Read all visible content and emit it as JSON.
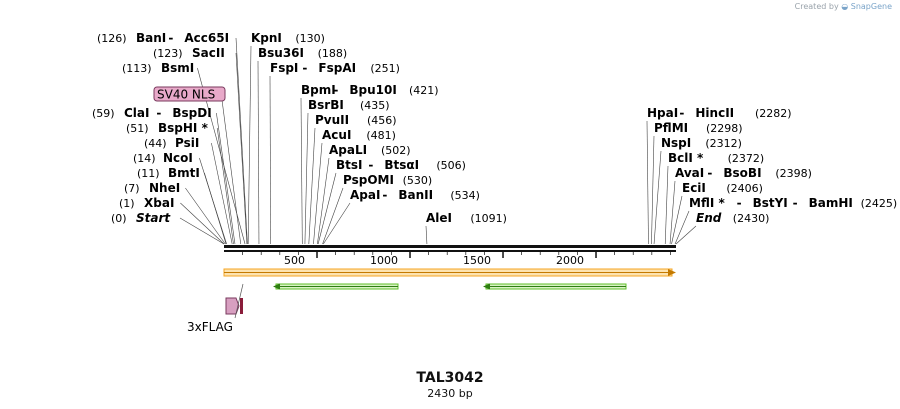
{
  "credit": {
    "prefix": "Created by",
    "brand": "SnapGene"
  },
  "plasmid": {
    "name": "TAL3042",
    "length_label": "2430 bp",
    "length": 2430
  },
  "axis": {
    "ticks": [
      500,
      1000,
      1500,
      2000
    ]
  },
  "sites_left": [
    {
      "pos": "(126)",
      "names": [
        "BanI",
        "Acc65I"
      ],
      "at": 126
    },
    {
      "pos": "(123)",
      "names": [
        "SacII"
      ],
      "at": 123
    },
    {
      "pos": "(113)",
      "names": [
        "BsmI"
      ],
      "at": 113
    },
    {
      "pos": "",
      "names": [],
      "at": 90,
      "feature": "SV40 NLS"
    },
    {
      "pos": "(59)",
      "names": [
        "ClaI",
        "BspDI"
      ],
      "at": 59
    },
    {
      "pos": "(51)",
      "names": [
        "BspHI *"
      ],
      "at": 51
    },
    {
      "pos": "(44)",
      "names": [
        "PsiI"
      ],
      "at": 44
    },
    {
      "pos": "(14)",
      "names": [
        "NcoI"
      ],
      "at": 14
    },
    {
      "pos": "(11)",
      "names": [
        "BmtI"
      ],
      "at": 11
    },
    {
      "pos": "(7)",
      "names": [
        "NheI"
      ],
      "at": 7
    },
    {
      "pos": "(1)",
      "names": [
        "XbaI"
      ],
      "at": 1
    },
    {
      "pos": "(0)",
      "names": [
        "Start"
      ],
      "at": 0,
      "italic": true
    }
  ],
  "sites_mid": [
    {
      "pos": "(130)",
      "names": [
        "KpnI"
      ],
      "at": 130
    },
    {
      "pos": "(188)",
      "names": [
        "Bsu36I"
      ],
      "at": 188
    },
    {
      "pos": "(251)",
      "names": [
        "FspI",
        "FspAI"
      ],
      "at": 251
    },
    {
      "pos": "(421)",
      "names": [
        "BpmI",
        "Bpu10I"
      ],
      "at": 421
    },
    {
      "pos": "(435)",
      "names": [
        "BsrBI"
      ],
      "at": 435
    },
    {
      "pos": "(456)",
      "names": [
        "PvuII"
      ],
      "at": 456
    },
    {
      "pos": "(481)",
      "names": [
        "AcuI"
      ],
      "at": 481
    },
    {
      "pos": "(502)",
      "names": [
        "ApaLI"
      ],
      "at": 502
    },
    {
      "pos": "(506)",
      "names": [
        "BtsI",
        "BtsαI"
      ],
      "at": 506
    },
    {
      "pos": "(530)",
      "names": [
        "PspOMI"
      ],
      "at": 530
    },
    {
      "pos": "(534)",
      "names": [
        "ApaI",
        "BanII"
      ],
      "at": 534
    },
    {
      "pos": "(1091)",
      "names": [
        "AleI"
      ],
      "at": 1091
    }
  ],
  "sites_right": [
    {
      "pos": "(2282)",
      "names": [
        "HpaI",
        "HincII"
      ],
      "at": 2282
    },
    {
      "pos": "(2298)",
      "names": [
        "PflMI"
      ],
      "at": 2298
    },
    {
      "pos": "(2312)",
      "names": [
        "NspI"
      ],
      "at": 2312
    },
    {
      "pos": "(2372)",
      "names": [
        "BclI *"
      ],
      "at": 2372
    },
    {
      "pos": "(2398)",
      "names": [
        "AvaI",
        "BsoBI"
      ],
      "at": 2398
    },
    {
      "pos": "(2406)",
      "names": [
        "EciI"
      ],
      "at": 2406
    },
    {
      "pos": "(2425)",
      "names": [
        "MflI *",
        "BstYI",
        "BamHI"
      ],
      "at": 2425
    },
    {
      "pos": "(2430)",
      "names": [
        "End"
      ],
      "at": 2430,
      "italic": true
    }
  ],
  "features": {
    "bottom_label": "3xFLAG",
    "orf_color": "#f5a623",
    "green_color": "#5fbf2a",
    "nls_color": "#e8a9c9"
  }
}
